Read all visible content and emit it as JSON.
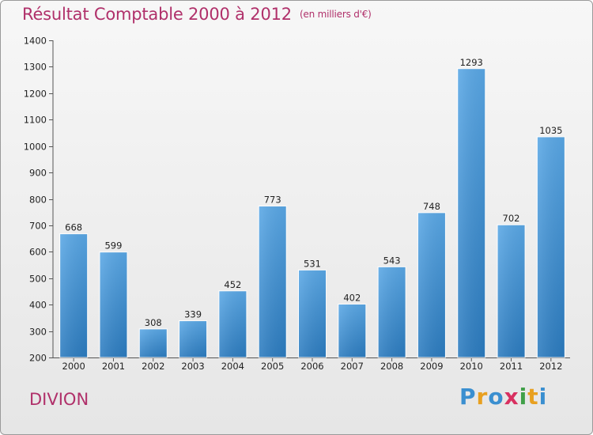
{
  "chart_data": {
    "type": "bar",
    "title": "Résultat Comptable 2000 à 2012",
    "subtitle": "(en milliers d'€)",
    "xlabel": "",
    "ylabel": "",
    "categories": [
      "2000",
      "2001",
      "2002",
      "2003",
      "2004",
      "2005",
      "2006",
      "2007",
      "2008",
      "2009",
      "2010",
      "2011",
      "2012"
    ],
    "values": [
      668,
      599,
      308,
      339,
      452,
      773,
      531,
      402,
      543,
      748,
      1293,
      702,
      1035
    ],
    "ylim": [
      200,
      1400
    ],
    "yticks": [
      200,
      300,
      400,
      500,
      600,
      700,
      800,
      900,
      1000,
      1100,
      1200,
      1300,
      1400
    ],
    "grid": false,
    "legend": "none",
    "bar_color": "#3d8fd6"
  },
  "footer": {
    "commune": "DIVION",
    "logo_letters": [
      {
        "char": "P",
        "color": "#3a8fd0"
      },
      {
        "char": "r",
        "color": "#e8a020"
      },
      {
        "char": "o",
        "color": "#3a8fd0"
      },
      {
        "char": "x",
        "color": "#d83060"
      },
      {
        "char": "i",
        "color": "#40a048"
      },
      {
        "char": "t",
        "color": "#e8a020"
      },
      {
        "char": "i",
        "color": "#3a8fd0"
      }
    ]
  }
}
